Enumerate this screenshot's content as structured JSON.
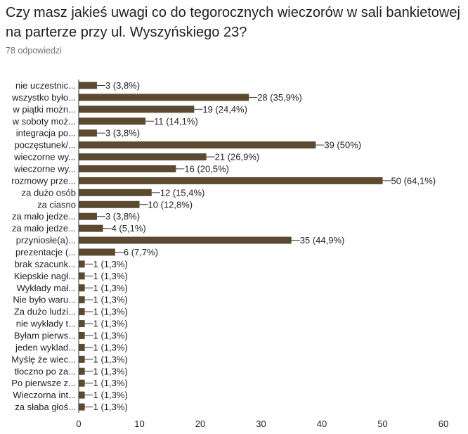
{
  "header": {
    "question": "Czy masz jakieś uwagi co do tegorocznych wieczorów w sali bankietowej na parterze przy ul. Wyszyńskiego 23?",
    "responses": "78 odpowiedzi"
  },
  "colors": {
    "bar": "#5b4a30",
    "axis": "#333333",
    "grid": "#e0e0e0",
    "label": "#222222"
  },
  "chart_data": {
    "type": "bar",
    "orientation": "horizontal",
    "xlim": [
      0,
      60
    ],
    "xticks": [
      0,
      10,
      20,
      30,
      40,
      50,
      60
    ],
    "grid": false,
    "categories": [
      "nie uczestnic...",
      "wszystko było...",
      "w piątki możn...",
      "w soboty moż...",
      "integracja po...",
      "poczęstunek/...",
      "wieczorne wy...",
      "wieczorne wy...",
      "rozmowy prze...",
      "za dużo osób",
      "za ciasno",
      "za mało jedze...",
      "za mało jedze...",
      "przyniosłe(a)...",
      "prezentacje (...",
      "brak szacunk...",
      "Kiepskie nagł...",
      "Wykłady mał...",
      "Nie było waru...",
      "Za dużo ludzi...",
      "nie wykłady t...",
      "Byłam pierws...",
      "jeden wyklad...",
      "Myślę że wiec...",
      "tłoczno po za...",
      "Po pierwsze z...",
      "Wieczorna int...",
      "za słaba głoś..."
    ],
    "values": [
      3,
      28,
      19,
      11,
      3,
      39,
      21,
      16,
      50,
      12,
      10,
      3,
      4,
      35,
      6,
      1,
      1,
      1,
      1,
      1,
      1,
      1,
      1,
      1,
      1,
      1,
      1,
      1
    ],
    "value_labels": [
      "3 (3,8%)",
      "28 (35,9%)",
      "19 (24,4%)",
      "11 (14,1%)",
      "3 (3,8%)",
      "39 (50%)",
      "21 (26,9%)",
      "16 (20,5%)",
      "50 (64,1%)",
      "12 (15,4%)",
      "10 (12,8%)",
      "3 (3,8%)",
      "4 (5,1%)",
      "35 (44,9%)",
      "6 (7,7%)",
      "1 (1,3%)",
      "1 (1,3%)",
      "1 (1,3%)",
      "1 (1,3%)",
      "1 (1,3%)",
      "1 (1,3%)",
      "1 (1,3%)",
      "1 (1,3%)",
      "1 (1,3%)",
      "1 (1,3%)",
      "1 (1,3%)",
      "1 (1,3%)",
      "1 (1,3%)"
    ]
  }
}
